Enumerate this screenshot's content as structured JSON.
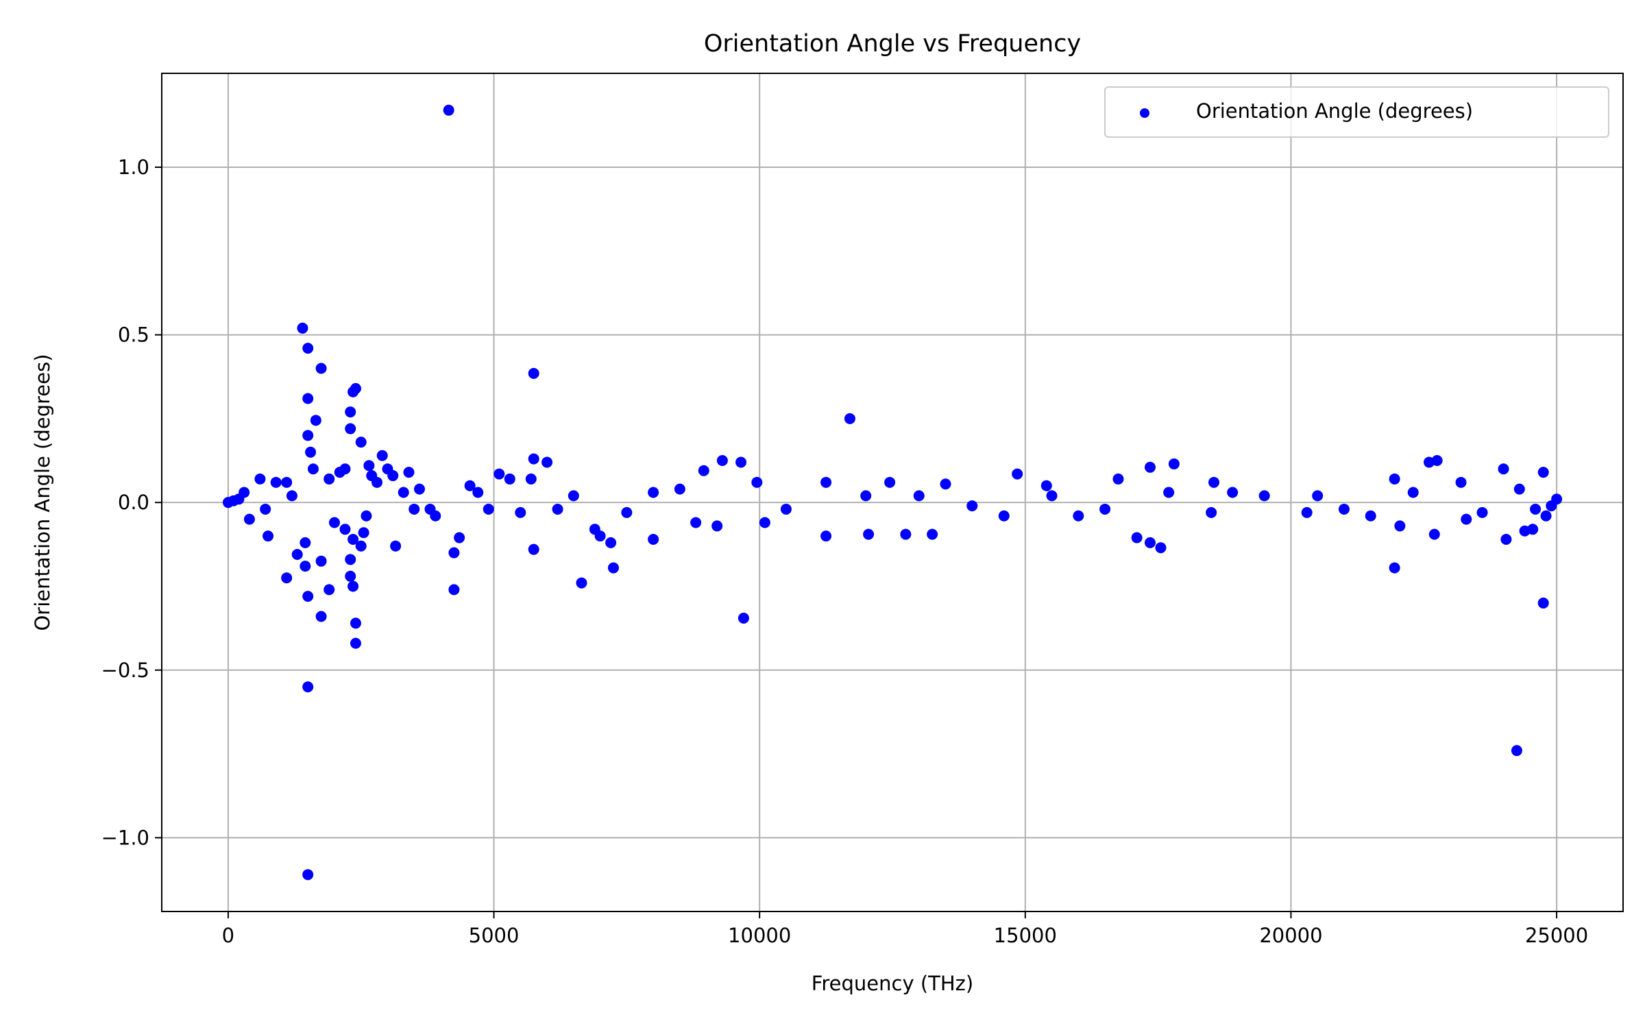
{
  "chart_data": {
    "type": "scatter",
    "title": "Orientation Angle vs Frequency",
    "xlabel": "Frequency (THz)",
    "ylabel": "Orientation Angle (degrees)",
    "xlim": [
      -1250,
      26250
    ],
    "ylim": [
      -1.22,
      1.28
    ],
    "xticks": [
      0,
      5000,
      10000,
      15000,
      20000,
      25000
    ],
    "xtick_labels": [
      "0",
      "5000",
      "10000",
      "15000",
      "20000",
      "25000"
    ],
    "yticks": [
      -1.0,
      -0.5,
      0.0,
      0.5,
      1.0
    ],
    "ytick_labels": [
      "−1.0",
      "−0.5",
      "0.0",
      "0.5",
      "1.0"
    ],
    "grid": true,
    "legend_position": "top-right",
    "series": [
      {
        "name": "Orientation Angle (degrees)",
        "color": "#0000ff",
        "points": [
          [
            4150,
            1.17
          ],
          [
            1400,
            0.52
          ],
          [
            1500,
            0.46
          ],
          [
            1750,
            0.4
          ],
          [
            5750,
            0.385
          ],
          [
            1500,
            0.31
          ],
          [
            2400,
            0.34
          ],
          [
            2350,
            0.33
          ],
          [
            2300,
            0.27
          ],
          [
            1650,
            0.245
          ],
          [
            11700,
            0.25
          ],
          [
            2300,
            0.22
          ],
          [
            1500,
            0.2
          ],
          [
            2500,
            0.18
          ],
          [
            1550,
            0.15
          ],
          [
            2900,
            0.14
          ],
          [
            5750,
            0.13
          ],
          [
            6000,
            0.12
          ],
          [
            9300,
            0.125
          ],
          [
            9650,
            0.12
          ],
          [
            17800,
            0.115
          ],
          [
            22600,
            0.12
          ],
          [
            22750,
            0.125
          ],
          [
            24000,
            0.1
          ],
          [
            17350,
            0.105
          ],
          [
            8950,
            0.095
          ],
          [
            3400,
            0.09
          ],
          [
            14850,
            0.085
          ],
          [
            24750,
            0.09
          ],
          [
            2650,
            0.11
          ],
          [
            2200,
            0.1
          ],
          [
            2100,
            0.09
          ],
          [
            1600,
            0.1
          ],
          [
            3100,
            0.08
          ],
          [
            3000,
            0.1
          ],
          [
            1900,
            0.07
          ],
          [
            2700,
            0.08
          ],
          [
            2800,
            0.06
          ],
          [
            5100,
            0.085
          ],
          [
            5300,
            0.07
          ],
          [
            5700,
            0.07
          ],
          [
            4550,
            0.05
          ],
          [
            9950,
            0.06
          ],
          [
            11250,
            0.06
          ],
          [
            12450,
            0.06
          ],
          [
            16750,
            0.07
          ],
          [
            18550,
            0.06
          ],
          [
            21950,
            0.07
          ],
          [
            23200,
            0.06
          ],
          [
            13500,
            0.055
          ],
          [
            15400,
            0.05
          ],
          [
            600,
            0.07
          ],
          [
            900,
            0.06
          ],
          [
            1100,
            0.06
          ],
          [
            300,
            0.03
          ],
          [
            200,
            0.01
          ],
          [
            100,
            0.005
          ],
          [
            0,
            0.0
          ],
          [
            25000,
            0.01
          ],
          [
            24900,
            -0.01
          ],
          [
            1500,
            -1.11
          ],
          [
            1500,
            -0.55
          ],
          [
            24250,
            -0.74
          ],
          [
            9700,
            -0.345
          ],
          [
            2400,
            -0.42
          ],
          [
            2400,
            -0.36
          ],
          [
            1750,
            -0.34
          ],
          [
            24750,
            -0.3
          ],
          [
            1500,
            -0.28
          ],
          [
            1900,
            -0.26
          ],
          [
            4250,
            -0.26
          ],
          [
            2350,
            -0.25
          ],
          [
            2300,
            -0.22
          ],
          [
            1100,
            -0.225
          ],
          [
            6650,
            -0.24
          ],
          [
            7250,
            -0.195
          ],
          [
            21950,
            -0.195
          ],
          [
            1450,
            -0.19
          ],
          [
            2300,
            -0.17
          ],
          [
            1750,
            -0.175
          ],
          [
            1300,
            -0.155
          ],
          [
            4250,
            -0.15
          ],
          [
            5750,
            -0.14
          ],
          [
            17550,
            -0.135
          ],
          [
            17350,
            -0.12
          ],
          [
            17100,
            -0.105
          ],
          [
            3150,
            -0.13
          ],
          [
            2500,
            -0.13
          ],
          [
            2550,
            -0.09
          ],
          [
            2350,
            -0.11
          ],
          [
            1450,
            -0.12
          ],
          [
            750,
            -0.1
          ],
          [
            4350,
            -0.105
          ],
          [
            7200,
            -0.12
          ],
          [
            7000,
            -0.1
          ],
          [
            8000,
            -0.11
          ],
          [
            11250,
            -0.1
          ],
          [
            12050,
            -0.095
          ],
          [
            12750,
            -0.095
          ],
          [
            13250,
            -0.095
          ],
          [
            22700,
            -0.095
          ],
          [
            24050,
            -0.11
          ],
          [
            24400,
            -0.085
          ],
          [
            24550,
            -0.08
          ],
          [
            22050,
            -0.07
          ],
          [
            10100,
            -0.06
          ],
          [
            9200,
            -0.07
          ],
          [
            8800,
            -0.06
          ],
          [
            6900,
            -0.08
          ],
          [
            3900,
            -0.04
          ],
          [
            400,
            -0.05
          ],
          [
            2000,
            -0.06
          ],
          [
            2200,
            -0.08
          ],
          [
            14600,
            -0.04
          ],
          [
            16000,
            -0.04
          ],
          [
            18500,
            -0.03
          ],
          [
            20300,
            -0.03
          ],
          [
            21500,
            -0.04
          ],
          [
            23300,
            -0.05
          ],
          [
            24800,
            -0.04
          ],
          [
            19500,
            0.02
          ],
          [
            20500,
            0.02
          ],
          [
            15500,
            0.02
          ],
          [
            12000,
            0.02
          ],
          [
            8000,
            0.03
          ],
          [
            6500,
            0.02
          ],
          [
            4700,
            0.03
          ],
          [
            3600,
            0.04
          ],
          [
            3800,
            -0.02
          ],
          [
            4900,
            -0.02
          ],
          [
            6200,
            -0.02
          ],
          [
            7500,
            -0.03
          ],
          [
            8500,
            0.04
          ],
          [
            10500,
            -0.02
          ],
          [
            13000,
            0.02
          ],
          [
            14000,
            -0.01
          ],
          [
            16500,
            -0.02
          ],
          [
            17700,
            0.03
          ],
          [
            18900,
            0.03
          ],
          [
            21000,
            -0.02
          ],
          [
            22300,
            0.03
          ],
          [
            23600,
            -0.03
          ],
          [
            24300,
            0.04
          ],
          [
            24600,
            -0.02
          ],
          [
            700,
            -0.02
          ],
          [
            1200,
            0.02
          ],
          [
            2600,
            -0.04
          ],
          [
            3300,
            0.03
          ],
          [
            3500,
            -0.02
          ],
          [
            5500,
            -0.03
          ]
        ]
      }
    ]
  }
}
